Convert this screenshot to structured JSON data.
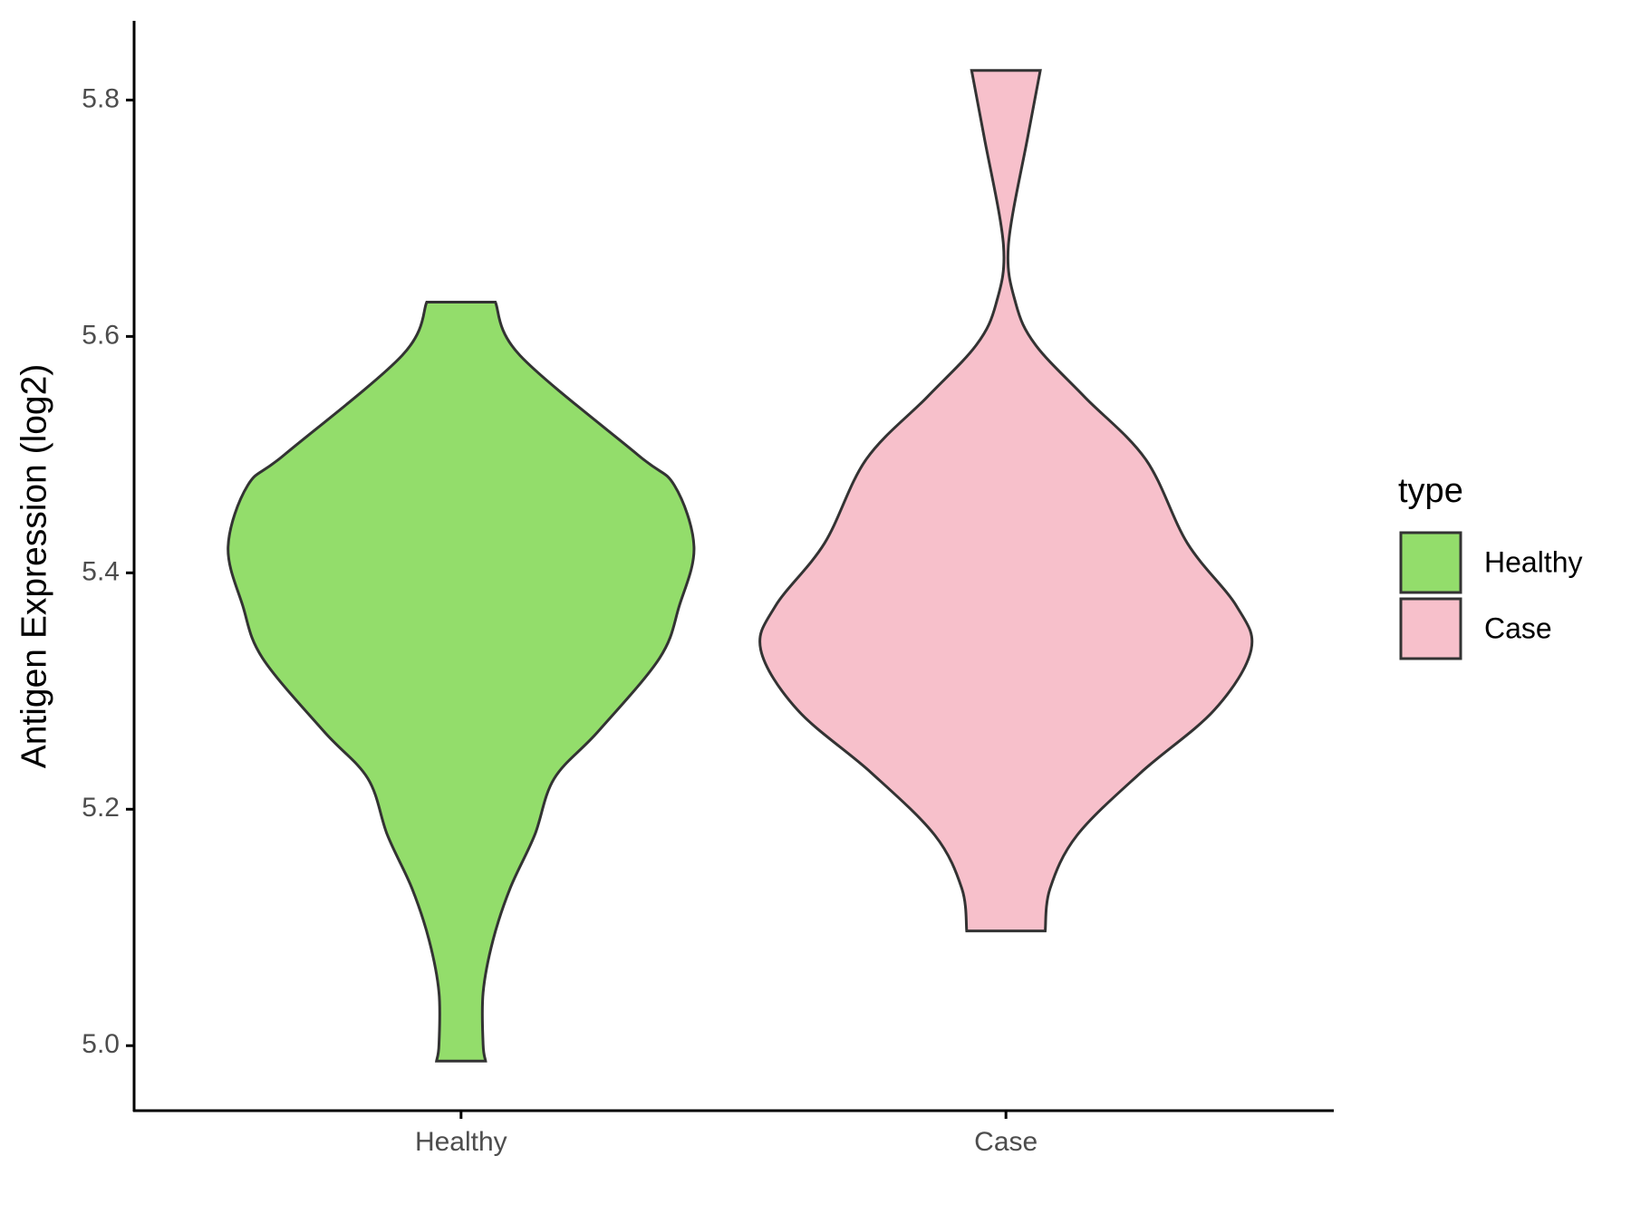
{
  "chart_data": {
    "type": "violin",
    "ylabel": "Antigen Expression (log2)",
    "categories": [
      "Healthy",
      "Case"
    ],
    "ylim": [
      4.945,
      5.867
    ],
    "yticks": [
      {
        "value": 5.0,
        "label": "5.0"
      },
      {
        "value": 5.2,
        "label": "5.2"
      },
      {
        "value": 5.4,
        "label": "5.4"
      },
      {
        "value": 5.6,
        "label": "5.6"
      },
      {
        "value": 5.8,
        "label": "5.8"
      }
    ],
    "legend_title": "type",
    "legend_position": "right",
    "series": [
      {
        "name": "Healthy",
        "color": "#93dd6b",
        "y": [
          5.629,
          5.584,
          5.5,
          5.474,
          5.422,
          5.372,
          5.328,
          5.266,
          5.226,
          5.178,
          5.133,
          5.089,
          5.045,
          5.001,
          4.987
        ],
        "density": [
          0.14,
          0.24,
          0.72,
          0.87,
          0.95,
          0.89,
          0.81,
          0.56,
          0.38,
          0.3,
          0.2,
          0.13,
          0.09,
          0.09,
          0.1
        ]
      },
      {
        "name": "Case",
        "color": "#f7c0cb",
        "y": [
          5.825,
          5.77,
          5.677,
          5.628,
          5.593,
          5.549,
          5.496,
          5.425,
          5.372,
          5.335,
          5.284,
          5.231,
          5.178,
          5.133,
          5.097
        ],
        "density": [
          0.14,
          0.09,
          0.01,
          0.04,
          0.12,
          0.32,
          0.57,
          0.74,
          0.94,
          1.0,
          0.85,
          0.55,
          0.29,
          0.18,
          0.16
        ]
      }
    ]
  }
}
